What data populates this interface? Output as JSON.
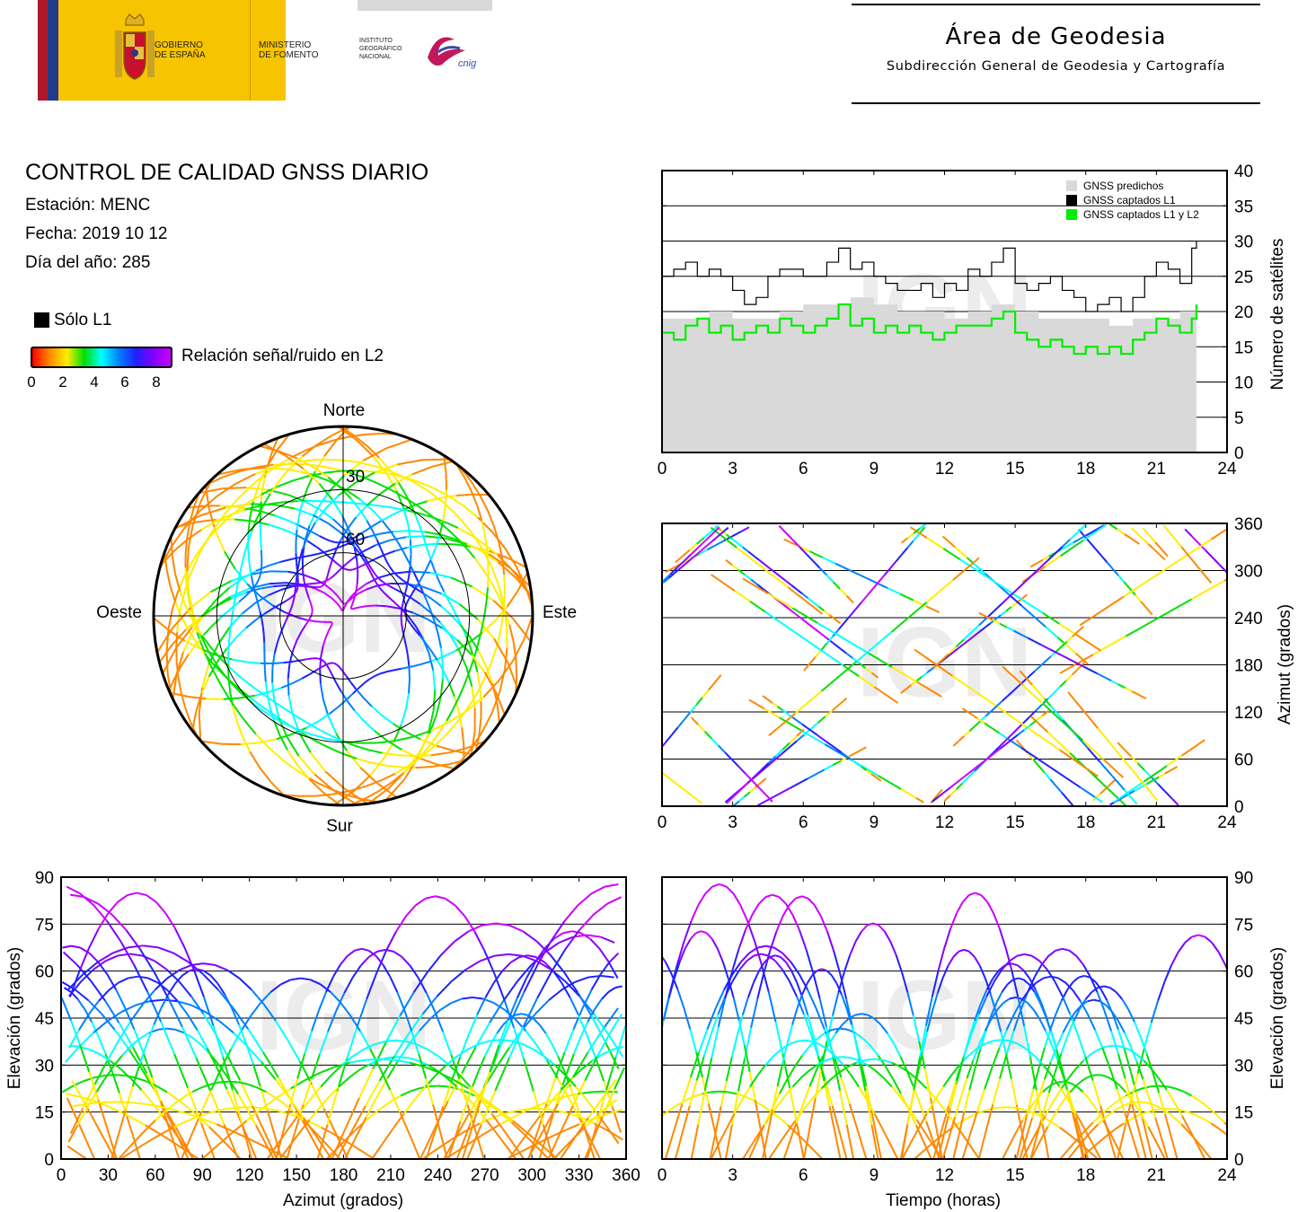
{
  "header": {
    "gov_line1": "GOBIERNO",
    "gov_line2": "DE ESPAÑA",
    "min_line1": "MINISTERIO",
    "min_line2": "DE FOMENTO",
    "ign_line1": "INSTITUTO",
    "ign_line2": "GEOGRÁFICO",
    "ign_line3": "NACIONAL",
    "cnig": "cnig",
    "area_title": "Área de Geodesia",
    "area_subtitle": "Subdirección General de Geodesia y Cartografía",
    "watermark": "IGN"
  },
  "report": {
    "title": "CONTROL DE CALIDAD GNSS DIARIO",
    "station": "Estación: MENC",
    "date": "Fecha: 2019 10 12",
    "doy": "Día del año: 285"
  },
  "legend": {
    "l1_only": "Sólo L1",
    "snr_label": "Relación señal/ruido en L2",
    "snr_ticks": [
      "0",
      "2",
      "4",
      "6",
      "8"
    ],
    "l1_color": "#000000",
    "snr_colors": [
      "#ff0000",
      "#ff8800",
      "#ffee00",
      "#00e000",
      "#00ffff",
      "#0080ff",
      "#2020ff",
      "#8000ff",
      "#cc00ff"
    ]
  },
  "chart_data": [
    {
      "id": "satellite_count",
      "type": "line",
      "xlim": [
        0,
        24
      ],
      "ylim": [
        0,
        40
      ],
      "x_ticks": [
        0,
        3,
        6,
        9,
        12,
        15,
        18,
        21,
        24
      ],
      "y_ticks": [
        0,
        5,
        10,
        15,
        20,
        25,
        30,
        35,
        40
      ],
      "ylabel": "Número de satélites",
      "legend": [
        "GNSS predichos",
        "GNSS captados L1",
        "GNSS captados L1 y L2"
      ],
      "legend_position": "top-right",
      "series": [
        {
          "name": "GNSS predichos",
          "color": "#d9d9d9",
          "x": [
            0,
            1,
            2,
            3,
            4,
            5,
            6,
            7,
            8,
            9,
            10,
            11,
            12,
            13,
            14,
            15,
            16,
            17,
            18,
            19,
            20,
            21,
            22,
            22.7
          ],
          "y": [
            19,
            19,
            20,
            19,
            19,
            20,
            21,
            21,
            22,
            21,
            20,
            20,
            19,
            20,
            21,
            20,
            19,
            19,
            19,
            18,
            19,
            19,
            20,
            22
          ]
        },
        {
          "name": "GNSS captados L1",
          "color": "#000000",
          "x": [
            0,
            0.5,
            1,
            1.5,
            2,
            2.5,
            3,
            3.5,
            4,
            4.5,
            5,
            5.5,
            6,
            6.5,
            7,
            7.5,
            8,
            8.5,
            9,
            9.5,
            10,
            10.5,
            11,
            11.5,
            12,
            12.5,
            13,
            13.5,
            14,
            14.5,
            15,
            15.5,
            16,
            16.5,
            17,
            17.5,
            18,
            18.5,
            19,
            19.5,
            20,
            20.5,
            21,
            21.5,
            22,
            22.5,
            22.7
          ],
          "y": [
            25,
            26,
            27,
            25,
            26,
            25,
            23,
            21,
            22,
            25,
            26,
            26,
            25,
            25,
            27,
            29,
            26,
            27,
            25,
            24,
            23,
            23,
            24,
            22,
            24,
            23,
            26,
            25,
            27,
            29,
            24,
            23,
            24,
            25,
            23,
            22,
            20,
            21,
            22,
            20,
            22,
            25,
            27,
            26,
            24,
            29,
            30
          ]
        },
        {
          "name": "GNSS captados L1 y L2",
          "color": "#00ee00",
          "x": [
            0,
            0.5,
            1,
            1.5,
            2,
            2.5,
            3,
            3.5,
            4,
            4.5,
            5,
            5.5,
            6,
            6.5,
            7,
            7.5,
            8,
            8.5,
            9,
            9.5,
            10,
            10.5,
            11,
            11.5,
            12,
            12.5,
            13,
            13.5,
            14,
            14.5,
            15,
            15.5,
            16,
            16.5,
            17,
            17.5,
            18,
            18.5,
            19,
            19.5,
            20,
            20.5,
            21,
            21.5,
            22,
            22.5,
            22.7
          ],
          "y": [
            17,
            16,
            18,
            19,
            17,
            18,
            16,
            17,
            18,
            17,
            19,
            18,
            17,
            18,
            19,
            21,
            18,
            19,
            17,
            18,
            17,
            18,
            17,
            16,
            17,
            18,
            18,
            18,
            19,
            20,
            17,
            16,
            15,
            16,
            15,
            14,
            15,
            14,
            15,
            14,
            16,
            17,
            19,
            18,
            17,
            19,
            21
          ]
        }
      ]
    },
    {
      "id": "azimuth_time",
      "type": "scatter",
      "xlim": [
        0,
        24
      ],
      "ylim": [
        0,
        360
      ],
      "x_ticks": [
        0,
        3,
        6,
        9,
        12,
        15,
        18,
        21,
        24
      ],
      "y_ticks": [
        0,
        60,
        120,
        180,
        240,
        300,
        360
      ],
      "ylabel": "Azimut (grados)"
    },
    {
      "id": "skyplot",
      "type": "scatter",
      "ring_labels": [
        "30",
        "60"
      ],
      "directions": {
        "north": "Norte",
        "south": "Sur",
        "east": "Este",
        "west": "Oeste"
      }
    },
    {
      "id": "elevation_azimuth",
      "type": "scatter",
      "xlim": [
        0,
        360
      ],
      "ylim": [
        0,
        90
      ],
      "x_ticks": [
        0,
        30,
        60,
        90,
        120,
        150,
        180,
        210,
        240,
        270,
        300,
        330,
        360
      ],
      "y_ticks": [
        0,
        15,
        30,
        45,
        60,
        75,
        90
      ],
      "xlabel": "Azimut (grados)",
      "ylabel": "Elevación (grados)"
    },
    {
      "id": "elevation_time",
      "type": "line",
      "xlim": [
        0,
        24
      ],
      "ylim": [
        0,
        90
      ],
      "x_ticks": [
        0,
        3,
        6,
        9,
        12,
        15,
        18,
        21,
        24
      ],
      "y_ticks": [
        0,
        15,
        30,
        45,
        60,
        75,
        90
      ],
      "xlabel": "Tiempo (horas)",
      "ylabel": "Elevación (grados)"
    }
  ]
}
